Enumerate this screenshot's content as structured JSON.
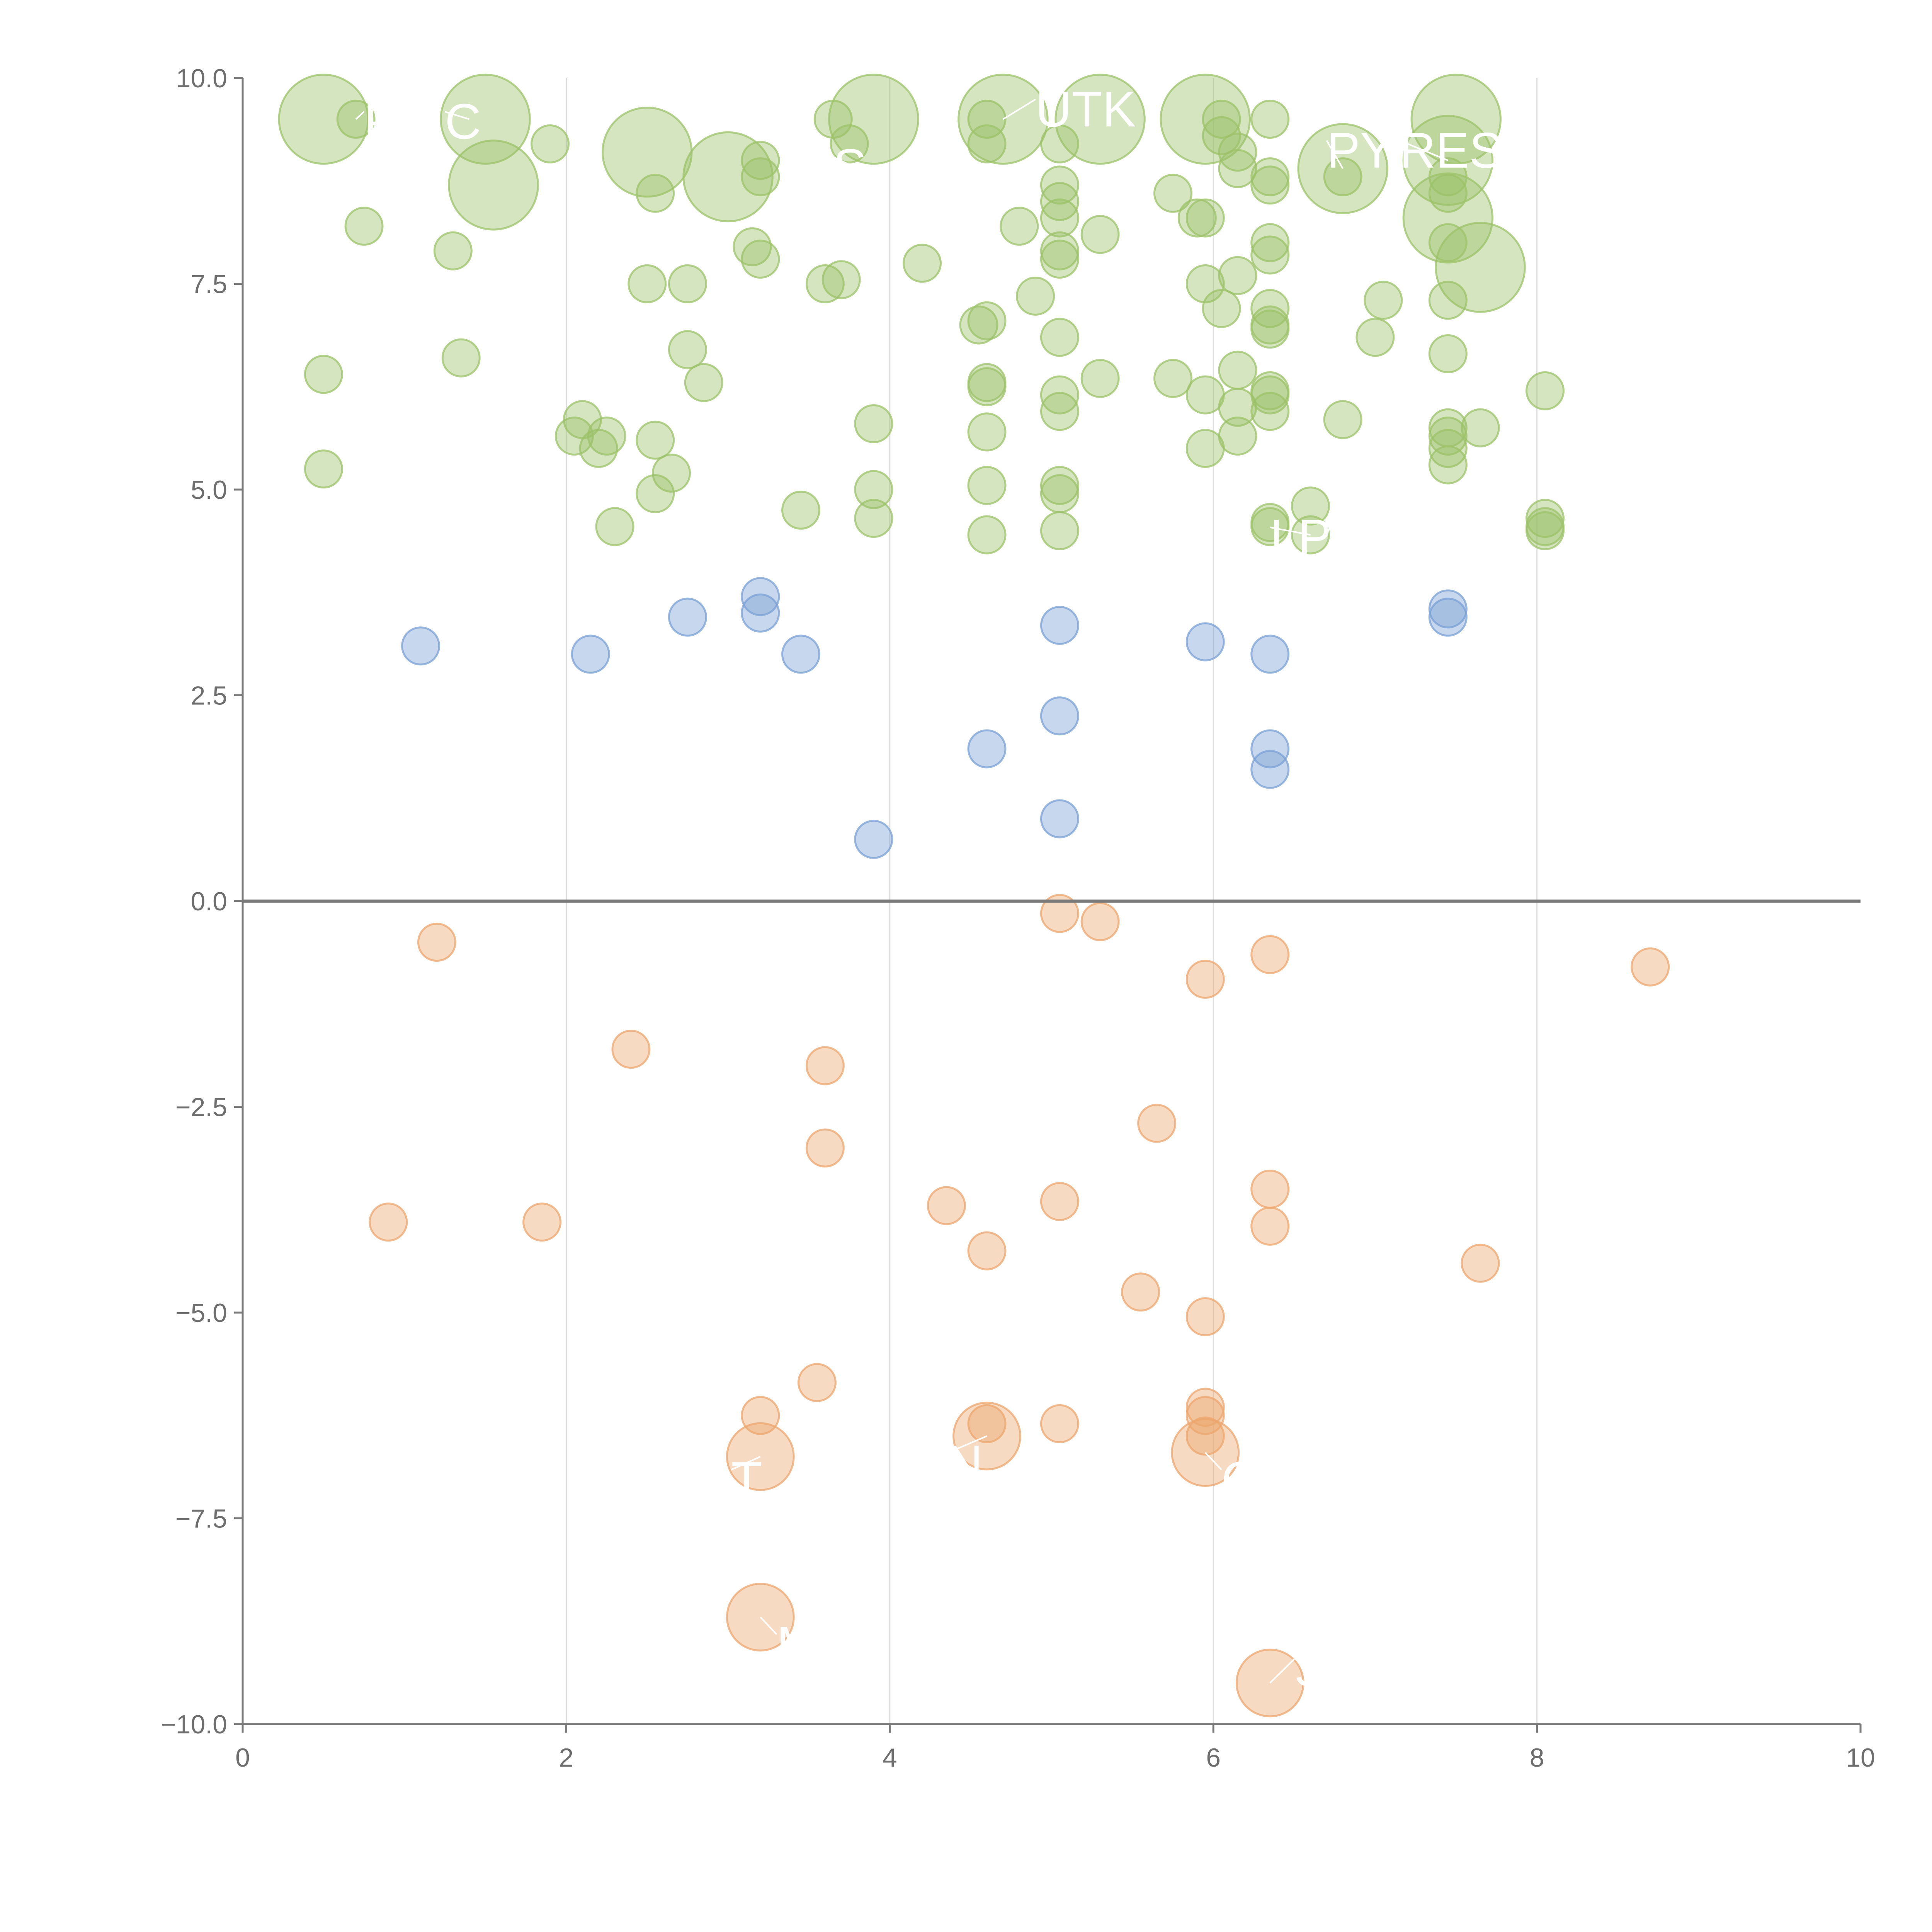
{
  "chart_data": {
    "type": "scatter",
    "title": "",
    "xlabel": "",
    "ylabel": "",
    "xlim": [
      0,
      10
    ],
    "ylim": [
      -10,
      10
    ],
    "xticks": [
      "0",
      "2",
      "4",
      "6",
      "8",
      "10"
    ],
    "yticks": [
      "10.0",
      "7.5",
      "5.0",
      "2.5",
      "0.0",
      "−2.5",
      "−5.0",
      "−7.5",
      "−10.0"
    ],
    "xtick_values": [
      0,
      2,
      4,
      6,
      8,
      10
    ],
    "ytick_values": [
      10,
      7.5,
      5,
      2.5,
      0,
      -2.5,
      -5,
      -7.5,
      -10
    ],
    "x_gridlines": [
      2,
      4,
      6,
      8
    ],
    "zero_line": 0,
    "series": [
      {
        "name": "green",
        "color": "#9cc168",
        "points": [
          {
            "x": 0.5,
            "y": 9.5,
            "r": 2.4
          },
          {
            "x": 0.7,
            "y": 9.5,
            "r": 1
          },
          {
            "x": 1.5,
            "y": 9.5,
            "r": 2.4
          },
          {
            "x": 1.55,
            "y": 8.7,
            "r": 2.4
          },
          {
            "x": 1.9,
            "y": 9.2,
            "r": 1
          },
          {
            "x": 2.5,
            "y": 9.1,
            "r": 2.4
          },
          {
            "x": 3.0,
            "y": 8.8,
            "r": 2.4
          },
          {
            "x": 3.2,
            "y": 9.0,
            "r": 1
          },
          {
            "x": 3.2,
            "y": 8.8,
            "r": 1
          },
          {
            "x": 2.55,
            "y": 8.6,
            "r": 1
          },
          {
            "x": 0.75,
            "y": 8.2,
            "r": 1
          },
          {
            "x": 1.3,
            "y": 7.9,
            "r": 1
          },
          {
            "x": 3.65,
            "y": 9.5,
            "r": 1
          },
          {
            "x": 3.9,
            "y": 9.5,
            "r": 2.4
          },
          {
            "x": 3.75,
            "y": 9.2,
            "r": 1
          },
          {
            "x": 4.6,
            "y": 9.5,
            "r": 1
          },
          {
            "x": 4.7,
            "y": 9.5,
            "r": 2.4
          },
          {
            "x": 5.3,
            "y": 9.5,
            "r": 2.4
          },
          {
            "x": 4.6,
            "y": 9.2,
            "r": 1
          },
          {
            "x": 5.05,
            "y": 9.2,
            "r": 1
          },
          {
            "x": 5.95,
            "y": 9.5,
            "r": 2.4
          },
          {
            "x": 6.05,
            "y": 9.5,
            "r": 1
          },
          {
            "x": 6.05,
            "y": 9.3,
            "r": 1
          },
          {
            "x": 6.35,
            "y": 9.5,
            "r": 1
          },
          {
            "x": 6.15,
            "y": 9.1,
            "r": 1
          },
          {
            "x": 6.15,
            "y": 8.9,
            "r": 1
          },
          {
            "x": 6.35,
            "y": 8.8,
            "r": 1
          },
          {
            "x": 6.35,
            "y": 8.7,
            "r": 1
          },
          {
            "x": 6.8,
            "y": 8.9,
            "r": 2.4
          },
          {
            "x": 6.8,
            "y": 8.8,
            "r": 1
          },
          {
            "x": 7.5,
            "y": 9.5,
            "r": 2.4
          },
          {
            "x": 7.45,
            "y": 9.0,
            "r": 2.4
          },
          {
            "x": 7.45,
            "y": 8.8,
            "r": 1
          },
          {
            "x": 7.45,
            "y": 8.6,
            "r": 1
          },
          {
            "x": 7.45,
            "y": 8.3,
            "r": 2.4
          },
          {
            "x": 7.65,
            "y": 7.7,
            "r": 2.4
          },
          {
            "x": 7.45,
            "y": 8.0,
            "r": 1
          },
          {
            "x": 5.05,
            "y": 8.7,
            "r": 1
          },
          {
            "x": 5.05,
            "y": 8.5,
            "r": 1
          },
          {
            "x": 5.05,
            "y": 8.3,
            "r": 1
          },
          {
            "x": 4.8,
            "y": 8.2,
            "r": 1
          },
          {
            "x": 5.3,
            "y": 8.1,
            "r": 1
          },
          {
            "x": 5.75,
            "y": 8.6,
            "r": 1
          },
          {
            "x": 5.9,
            "y": 8.3,
            "r": 1
          },
          {
            "x": 5.95,
            "y": 8.3,
            "r": 1
          },
          {
            "x": 6.35,
            "y": 8.0,
            "r": 1
          },
          {
            "x": 6.35,
            "y": 7.85,
            "r": 1
          },
          {
            "x": 5.05,
            "y": 7.9,
            "r": 1
          },
          {
            "x": 5.05,
            "y": 7.8,
            "r": 1
          },
          {
            "x": 4.2,
            "y": 7.75,
            "r": 1
          },
          {
            "x": 3.15,
            "y": 7.95,
            "r": 1
          },
          {
            "x": 3.2,
            "y": 7.8,
            "r": 1
          },
          {
            "x": 2.5,
            "y": 7.5,
            "r": 1
          },
          {
            "x": 2.75,
            "y": 7.5,
            "r": 1
          },
          {
            "x": 3.6,
            "y": 7.5,
            "r": 1
          },
          {
            "x": 3.7,
            "y": 7.55,
            "r": 1
          },
          {
            "x": 4.9,
            "y": 7.35,
            "r": 1
          },
          {
            "x": 5.95,
            "y": 7.5,
            "r": 1
          },
          {
            "x": 6.05,
            "y": 7.2,
            "r": 1
          },
          {
            "x": 6.15,
            "y": 7.6,
            "r": 1
          },
          {
            "x": 6.35,
            "y": 7.2,
            "r": 1
          },
          {
            "x": 6.35,
            "y": 7.0,
            "r": 1
          },
          {
            "x": 6.35,
            "y": 6.95,
            "r": 1
          },
          {
            "x": 7.05,
            "y": 7.3,
            "r": 1
          },
          {
            "x": 7.45,
            "y": 7.3,
            "r": 1
          },
          {
            "x": 7.0,
            "y": 6.85,
            "r": 1
          },
          {
            "x": 7.45,
            "y": 6.65,
            "r": 1
          },
          {
            "x": 4.55,
            "y": 7.0,
            "r": 1
          },
          {
            "x": 4.6,
            "y": 7.05,
            "r": 1
          },
          {
            "x": 5.05,
            "y": 6.85,
            "r": 1
          },
          {
            "x": 2.75,
            "y": 6.7,
            "r": 1
          },
          {
            "x": 2.85,
            "y": 6.3,
            "r": 1
          },
          {
            "x": 0.5,
            "y": 6.4,
            "r": 1
          },
          {
            "x": 1.35,
            "y": 6.6,
            "r": 1
          },
          {
            "x": 4.6,
            "y": 6.3,
            "r": 1
          },
          {
            "x": 4.6,
            "y": 6.25,
            "r": 1
          },
          {
            "x": 5.05,
            "y": 6.15,
            "r": 1
          },
          {
            "x": 5.3,
            "y": 6.35,
            "r": 1
          },
          {
            "x": 5.05,
            "y": 5.95,
            "r": 1
          },
          {
            "x": 5.75,
            "y": 6.35,
            "r": 1
          },
          {
            "x": 5.95,
            "y": 6.15,
            "r": 1
          },
          {
            "x": 6.15,
            "y": 6.45,
            "r": 1
          },
          {
            "x": 6.15,
            "y": 6.0,
            "r": 1
          },
          {
            "x": 6.35,
            "y": 6.2,
            "r": 1
          },
          {
            "x": 6.35,
            "y": 6.15,
            "r": 1
          },
          {
            "x": 6.35,
            "y": 5.95,
            "r": 1
          },
          {
            "x": 8.05,
            "y": 6.2,
            "r": 1
          },
          {
            "x": 2.1,
            "y": 5.85,
            "r": 1
          },
          {
            "x": 2.05,
            "y": 5.65,
            "r": 1
          },
          {
            "x": 2.25,
            "y": 5.65,
            "r": 1
          },
          {
            "x": 2.2,
            "y": 5.5,
            "r": 1
          },
          {
            "x": 2.55,
            "y": 5.6,
            "r": 1
          },
          {
            "x": 3.9,
            "y": 5.8,
            "r": 1
          },
          {
            "x": 4.6,
            "y": 5.7,
            "r": 1
          },
          {
            "x": 5.95,
            "y": 5.5,
            "r": 1
          },
          {
            "x": 6.15,
            "y": 5.65,
            "r": 1
          },
          {
            "x": 6.8,
            "y": 5.85,
            "r": 1
          },
          {
            "x": 7.45,
            "y": 5.75,
            "r": 1
          },
          {
            "x": 7.45,
            "y": 5.65,
            "r": 1
          },
          {
            "x": 7.45,
            "y": 5.5,
            "r": 1
          },
          {
            "x": 7.45,
            "y": 5.3,
            "r": 1
          },
          {
            "x": 7.65,
            "y": 5.75,
            "r": 1
          },
          {
            "x": 0.5,
            "y": 5.25,
            "r": 1
          },
          {
            "x": 2.65,
            "y": 5.2,
            "r": 1
          },
          {
            "x": 2.55,
            "y": 4.95,
            "r": 1
          },
          {
            "x": 3.9,
            "y": 5.0,
            "r": 1
          },
          {
            "x": 4.6,
            "y": 5.05,
            "r": 1
          },
          {
            "x": 5.05,
            "y": 5.05,
            "r": 1
          },
          {
            "x": 5.05,
            "y": 4.95,
            "r": 1
          },
          {
            "x": 2.3,
            "y": 4.55,
            "r": 1
          },
          {
            "x": 3.45,
            "y": 4.75,
            "r": 1
          },
          {
            "x": 3.9,
            "y": 4.65,
            "r": 1
          },
          {
            "x": 4.6,
            "y": 4.45,
            "r": 1
          },
          {
            "x": 5.05,
            "y": 4.5,
            "r": 1
          },
          {
            "x": 6.35,
            "y": 4.6,
            "r": 1
          },
          {
            "x": 6.35,
            "y": 4.55,
            "r": 1
          },
          {
            "x": 6.6,
            "y": 4.8,
            "r": 1
          },
          {
            "x": 6.6,
            "y": 4.45,
            "r": 1
          },
          {
            "x": 8.05,
            "y": 4.65,
            "r": 1
          },
          {
            "x": 8.05,
            "y": 4.55,
            "r": 1
          },
          {
            "x": 8.05,
            "y": 4.5,
            "r": 1
          }
        ]
      },
      {
        "name": "blue",
        "color": "#7aa0d4",
        "points": [
          {
            "x": 1.1,
            "y": 3.1,
            "r": 1
          },
          {
            "x": 2.15,
            "y": 3.0,
            "r": 1
          },
          {
            "x": 2.75,
            "y": 3.45,
            "r": 1
          },
          {
            "x": 3.2,
            "y": 3.7,
            "r": 1
          },
          {
            "x": 3.2,
            "y": 3.5,
            "r": 1
          },
          {
            "x": 3.45,
            "y": 3.0,
            "r": 1
          },
          {
            "x": 5.05,
            "y": 3.35,
            "r": 1
          },
          {
            "x": 5.05,
            "y": 2.25,
            "r": 1
          },
          {
            "x": 5.95,
            "y": 3.15,
            "r": 1
          },
          {
            "x": 6.35,
            "y": 3.0,
            "r": 1
          },
          {
            "x": 6.35,
            "y": 1.85,
            "r": 1
          },
          {
            "x": 6.35,
            "y": 1.6,
            "r": 1
          },
          {
            "x": 7.45,
            "y": 3.55,
            "r": 1
          },
          {
            "x": 7.45,
            "y": 3.45,
            "r": 1
          },
          {
            "x": 4.6,
            "y": 1.85,
            "r": 1
          },
          {
            "x": 5.05,
            "y": 1.0,
            "r": 1
          },
          {
            "x": 3.9,
            "y": 0.75,
            "r": 1
          }
        ]
      },
      {
        "name": "orange",
        "color": "#eca66e",
        "points": [
          {
            "x": 1.2,
            "y": -0.5,
            "r": 1
          },
          {
            "x": 5.05,
            "y": -0.15,
            "r": 1
          },
          {
            "x": 5.3,
            "y": -0.25,
            "r": 1
          },
          {
            "x": 5.95,
            "y": -0.95,
            "r": 1
          },
          {
            "x": 6.35,
            "y": -0.65,
            "r": 1
          },
          {
            "x": 8.7,
            "y": -0.8,
            "r": 1
          },
          {
            "x": 2.4,
            "y": -1.8,
            "r": 1
          },
          {
            "x": 3.6,
            "y": -2.0,
            "r": 1
          },
          {
            "x": 3.6,
            "y": -3.0,
            "r": 1
          },
          {
            "x": 5.65,
            "y": -2.7,
            "r": 1
          },
          {
            "x": 0.9,
            "y": -3.9,
            "r": 1
          },
          {
            "x": 1.85,
            "y": -3.9,
            "r": 1
          },
          {
            "x": 4.35,
            "y": -3.7,
            "r": 1
          },
          {
            "x": 4.6,
            "y": -4.25,
            "r": 1
          },
          {
            "x": 5.05,
            "y": -3.65,
            "r": 1
          },
          {
            "x": 6.35,
            "y": -3.5,
            "r": 1
          },
          {
            "x": 6.35,
            "y": -3.95,
            "r": 1
          },
          {
            "x": 7.65,
            "y": -4.4,
            "r": 1
          },
          {
            "x": 5.55,
            "y": -4.75,
            "r": 1
          },
          {
            "x": 5.95,
            "y": -5.05,
            "r": 1
          },
          {
            "x": 3.55,
            "y": -5.85,
            "r": 1
          },
          {
            "x": 3.2,
            "y": -6.25,
            "r": 1
          },
          {
            "x": 3.2,
            "y": -6.75,
            "r": 1.8
          },
          {
            "x": 4.6,
            "y": -6.35,
            "r": 1
          },
          {
            "x": 4.6,
            "y": -6.5,
            "r": 1.8
          },
          {
            "x": 5.05,
            "y": -6.35,
            "r": 1
          },
          {
            "x": 5.95,
            "y": -6.15,
            "r": 1
          },
          {
            "x": 5.95,
            "y": -6.25,
            "r": 1
          },
          {
            "x": 5.95,
            "y": -6.5,
            "r": 1
          },
          {
            "x": 5.95,
            "y": -6.7,
            "r": 1.8
          },
          {
            "x": 3.2,
            "y": -8.7,
            "r": 1.8
          },
          {
            "x": 6.35,
            "y": -9.5,
            "r": 1.8
          }
        ]
      }
    ],
    "labels": [
      {
        "text": "P",
        "x": 0.7,
        "y": 9.5,
        "tx": 0.75,
        "ty": 9.45
      },
      {
        "text": "C",
        "x": 1.4,
        "y": 9.5,
        "tx": 1.25,
        "ty": 9.45
      },
      {
        "text": "S",
        "x": 3.8,
        "y": 8.9,
        "tx": 3.65,
        "ty": 8.9
      },
      {
        "text": "UTK",
        "x": 4.7,
        "y": 9.5,
        "tx": 4.9,
        "ty": 9.6
      },
      {
        "text": "PY",
        "x": 6.8,
        "y": 8.9,
        "tx": 6.7,
        "ty": 9.1
      },
      {
        "text": "RES",
        "x": 7.45,
        "y": 9.0,
        "tx": 7.15,
        "ty": 9.1
      },
      {
        "text": "LP",
        "x": 6.6,
        "y": 4.45,
        "tx": 6.35,
        "ty": 4.4
      },
      {
        "text": "T",
        "x": 3.2,
        "y": -6.75,
        "tx": 3.02,
        "ty": -7.05
      },
      {
        "text": "N",
        "x": 4.6,
        "y": -6.5,
        "tx": 4.35,
        "ty": -6.85
      },
      {
        "text": "C",
        "x": 5.95,
        "y": -6.7,
        "tx": 6.05,
        "ty": -7.05
      },
      {
        "text": "M",
        "x": 3.2,
        "y": -8.7,
        "tx": 3.3,
        "ty": -9.05
      },
      {
        "text": "S",
        "x": 6.35,
        "y": -9.5,
        "tx": 6.5,
        "ty": -9.35
      }
    ]
  }
}
